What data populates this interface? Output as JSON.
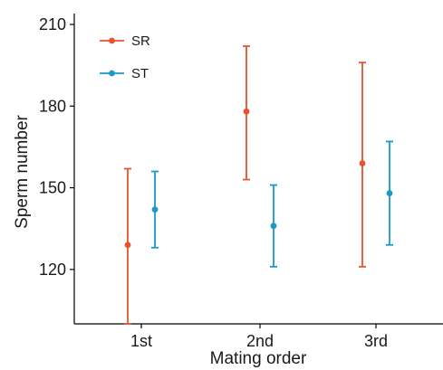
{
  "chart_data": {
    "type": "scatter",
    "subtype": "point-with-error-bars",
    "title": "",
    "xlabel": "Mating order",
    "ylabel": "Sperm number",
    "categories": [
      "1st",
      "2nd",
      "3rd"
    ],
    "ylim": [
      100,
      214
    ],
    "yticks": [
      120,
      150,
      180,
      210
    ],
    "grid": false,
    "legend_position": "top-left",
    "series": [
      {
        "name": "SR",
        "color": "#E8532F",
        "values": [
          129,
          178,
          159
        ],
        "lower": [
          100,
          153,
          121
        ],
        "upper": [
          157,
          202,
          196
        ]
      },
      {
        "name": "ST",
        "color": "#1B98C9",
        "values": [
          142,
          136,
          148
        ],
        "lower": [
          128,
          121,
          129
        ],
        "upper": [
          156,
          151,
          167
        ]
      }
    ]
  }
}
